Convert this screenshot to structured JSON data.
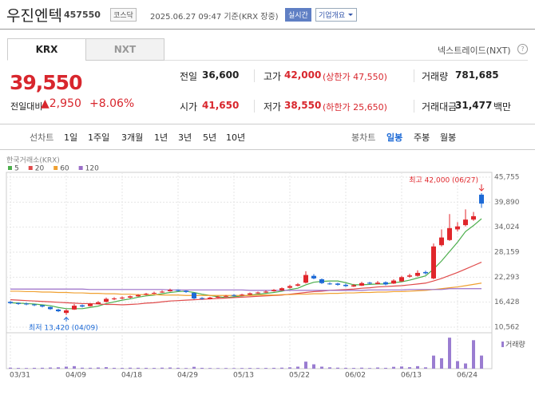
{
  "header": {
    "name": "우진엔텍",
    "code": "457550",
    "market": "코스닥",
    "timestamp": "2025.06.27 09:47 기준(KRX 장중)",
    "realtime": "실시간",
    "company_info": "기업개요"
  },
  "tabs": [
    "KRX",
    "NXT"
  ],
  "nxt_link": "넥스트레이드(NXT)",
  "price": {
    "current": "39,550",
    "change_label": "전일대비",
    "change": "▲2,950",
    "rate": "+8.06%"
  },
  "summary": {
    "rows": [
      [
        {
          "label": "전일",
          "value": "36,600"
        },
        {
          "label": "고가",
          "value": "42,000",
          "note": "(상한가 47,550)"
        },
        {
          "label": "거래량",
          "value": "781,685"
        }
      ],
      [
        {
          "label": "시가",
          "value": "41,650"
        },
        {
          "label": "저가",
          "value": "38,550",
          "note": "(하한가 25,650)"
        },
        {
          "label": "거래대금",
          "value": "31,477",
          "unit": "백만"
        }
      ]
    ]
  },
  "periods": {
    "line_label": "선차트",
    "line": [
      "1일",
      "1주일",
      "3개월",
      "1년",
      "3년",
      "5년",
      "10년"
    ],
    "candle_label": "봉차트",
    "candle": [
      "일봉",
      "주봉",
      "월봉"
    ]
  },
  "chart_data": {
    "type": "candlestick",
    "source": "한국거래소(KRX)",
    "categories": [
      "03/31",
      null,
      null,
      null,
      null,
      null,
      null,
      "04/09",
      null,
      null,
      null,
      null,
      null,
      null,
      "04/18",
      null,
      null,
      null,
      null,
      null,
      null,
      "04/29",
      null,
      null,
      null,
      null,
      null,
      null,
      "05/13",
      null,
      null,
      null,
      null,
      null,
      null,
      "05/22",
      null,
      null,
      null,
      null,
      null,
      null,
      "06/02",
      null,
      null,
      null,
      null,
      null,
      null,
      "06/13",
      null,
      null,
      null,
      null,
      null,
      null,
      "06/24",
      null,
      null,
      null
    ],
    "up_color": "#e0262b",
    "down_color": "#1d6ad6",
    "open": [
      16500,
      16200,
      16100,
      15900,
      15700,
      15300,
      14700,
      13900,
      14700,
      15700,
      15500,
      16000,
      16500,
      17100,
      17300,
      17500,
      17800,
      18200,
      18500,
      18700,
      19000,
      19300,
      19100,
      18600,
      17400,
      17200,
      17500,
      17800,
      18100,
      18000,
      18200,
      18500,
      18700,
      19000,
      19200,
      19800,
      20300,
      21000,
      22600,
      21800,
      20800,
      20800,
      20500,
      20100,
      20300,
      21000,
      20700,
      21100,
      20800,
      21300,
      22400,
      22600,
      23500,
      22000,
      29800,
      31000,
      33500,
      34500,
      35800,
      41650
    ],
    "high": [
      16700,
      16400,
      16300,
      16000,
      15800,
      15400,
      14900,
      14800,
      16000,
      15900,
      16200,
      16700,
      17500,
      17600,
      17800,
      18000,
      18300,
      18600,
      18900,
      19200,
      19600,
      19400,
      19200,
      18700,
      17600,
      17700,
      17900,
      18100,
      18300,
      18400,
      18700,
      18900,
      19200,
      19500,
      19900,
      20500,
      20900,
      23700,
      23000,
      22000,
      21100,
      21000,
      20800,
      20700,
      21200,
      21200,
      21400,
      21300,
      21800,
      22600,
      23100,
      23900,
      23800,
      30200,
      33500,
      37100,
      35200,
      38200,
      37600,
      42000
    ],
    "low": [
      16000,
      15800,
      15700,
      15500,
      15200,
      14600,
      14100,
      13420,
      14600,
      15200,
      15400,
      15900,
      16400,
      16900,
      17100,
      17300,
      17700,
      18000,
      18300,
      18600,
      18900,
      18900,
      18600,
      17100,
      17000,
      17100,
      17400,
      17600,
      17800,
      17900,
      18100,
      18400,
      18600,
      18900,
      19100,
      19600,
      20100,
      20800,
      21800,
      20700,
      20500,
      20300,
      20000,
      20000,
      20200,
      20600,
      20600,
      20400,
      20700,
      21200,
      22200,
      22400,
      22900,
      21800,
      29500,
      30800,
      33000,
      34200,
      35500,
      38550
    ],
    "close": [
      16200,
      16000,
      15900,
      15700,
      15400,
      14800,
      14300,
      14500,
      15600,
      15400,
      16000,
      16400,
      17200,
      17300,
      17500,
      17800,
      18100,
      18400,
      18600,
      18900,
      19300,
      19100,
      18800,
      17300,
      17200,
      17500,
      17700,
      17900,
      18000,
      18200,
      18500,
      18700,
      18900,
      19300,
      19700,
      20200,
      20600,
      22800,
      22000,
      20900,
      20700,
      20500,
      20200,
      20400,
      20900,
      20800,
      21000,
      20600,
      21500,
      22300,
      22700,
      23300,
      23200,
      29500,
      31600,
      33800,
      34200,
      35800,
      36600,
      39550
    ],
    "series": [
      {
        "name": "5",
        "color": "#4cae4c",
        "values": [
          16300,
          16200,
          16100,
          16000,
          15800,
          15600,
          15200,
          14900,
          14900,
          14900,
          15200,
          15500,
          16100,
          16500,
          16900,
          17200,
          17600,
          17900,
          18100,
          18400,
          18700,
          18900,
          19000,
          18700,
          18300,
          18000,
          17700,
          17500,
          17700,
          17900,
          18100,
          18300,
          18500,
          18700,
          19000,
          19400,
          19700,
          20500,
          21100,
          21300,
          21400,
          21400,
          21000,
          20500,
          20500,
          20600,
          20700,
          20700,
          21000,
          21200,
          21600,
          22100,
          22600,
          24200,
          26100,
          28300,
          30500,
          33000,
          34400,
          36000
        ]
      },
      {
        "name": "20",
        "color": "#e04b4b",
        "values": [
          17000,
          16900,
          16800,
          16700,
          16600,
          16500,
          16400,
          16300,
          16200,
          16100,
          16100,
          16000,
          15900,
          15900,
          15800,
          15900,
          16000,
          16200,
          16300,
          16500,
          16700,
          16800,
          16900,
          17000,
          17100,
          17200,
          17300,
          17400,
          17500,
          17600,
          17700,
          17800,
          17900,
          18000,
          18100,
          18300,
          18500,
          18700,
          18900,
          19000,
          19200,
          19300,
          19400,
          19500,
          19700,
          19800,
          20000,
          20100,
          20200,
          20300,
          20500,
          20700,
          20900,
          21400,
          22000,
          22700,
          23400,
          24200,
          25000,
          25800
        ]
      },
      {
        "name": "60",
        "color": "#f0a030",
        "values": [
          19000,
          19000,
          18900,
          18900,
          18800,
          18800,
          18700,
          18700,
          18600,
          18600,
          18500,
          18500,
          18400,
          18400,
          18300,
          18300,
          18200,
          18200,
          18200,
          18100,
          18100,
          18100,
          18000,
          18000,
          18000,
          18000,
          18000,
          18000,
          18000,
          18000,
          18000,
          18100,
          18100,
          18100,
          18200,
          18200,
          18300,
          18300,
          18400,
          18400,
          18500,
          18500,
          18600,
          18600,
          18700,
          18700,
          18800,
          18800,
          18900,
          18900,
          19000,
          19100,
          19200,
          19400,
          19600,
          19800,
          20000,
          20300,
          20600,
          20900
        ]
      },
      {
        "name": "120",
        "color": "#9b6fc8",
        "values": [
          19500,
          19500,
          19500,
          19500,
          19500,
          19500,
          19500,
          19500,
          19500,
          19500,
          19400,
          19400,
          19400,
          19400,
          19400,
          19400,
          19400,
          19400,
          19400,
          19400,
          19300,
          19300,
          19300,
          19300,
          19300,
          19300,
          19300,
          19300,
          19300,
          19300,
          19200,
          19200,
          19200,
          19200,
          19200,
          19200,
          19200,
          19200,
          19200,
          19200,
          19200,
          19200,
          19200,
          19200,
          19200,
          19300,
          19300,
          19300,
          19300,
          19300,
          19400,
          19400,
          19400,
          19400,
          19400,
          19600,
          19600,
          19600,
          19600,
          19600
        ]
      }
    ],
    "ylim": [
      10562,
      45755
    ],
    "yticks": [
      {
        "value": 10562,
        "label": "10,562"
      },
      {
        "value": 16428,
        "label": "16,428"
      },
      {
        "value": 22293,
        "label": "22,293"
      },
      {
        "value": 28159,
        "label": "28,159"
      },
      {
        "value": 34024,
        "label": "34,024"
      },
      {
        "value": 39890,
        "label": "39,890"
      },
      {
        "value": 45755,
        "label": "45,755"
      }
    ],
    "grid": true,
    "high_annotation": "최고 42,000 (06/27)",
    "low_annotation": "최저 13,420 (04/09)",
    "volume": {
      "name": "거래량",
      "color": "#9a7dd1",
      "ylim": [
        0,
        2000000
      ],
      "values": [
        60000,
        45000,
        40000,
        50000,
        55000,
        70000,
        80000,
        120000,
        150000,
        60000,
        55000,
        70000,
        90000,
        50000,
        45000,
        60000,
        55000,
        50000,
        45000,
        60000,
        70000,
        50000,
        40000,
        110000,
        50000,
        40000,
        35000,
        40000,
        35000,
        40000,
        45000,
        40000,
        45000,
        50000,
        60000,
        80000,
        120000,
        420000,
        260000,
        120000,
        80000,
        60000,
        50000,
        45000,
        60000,
        40000,
        70000,
        50000,
        110000,
        130000,
        90000,
        150000,
        80000,
        780000,
        620000,
        1850000,
        450000,
        310000,
        1700000,
        781685
      ]
    }
  }
}
